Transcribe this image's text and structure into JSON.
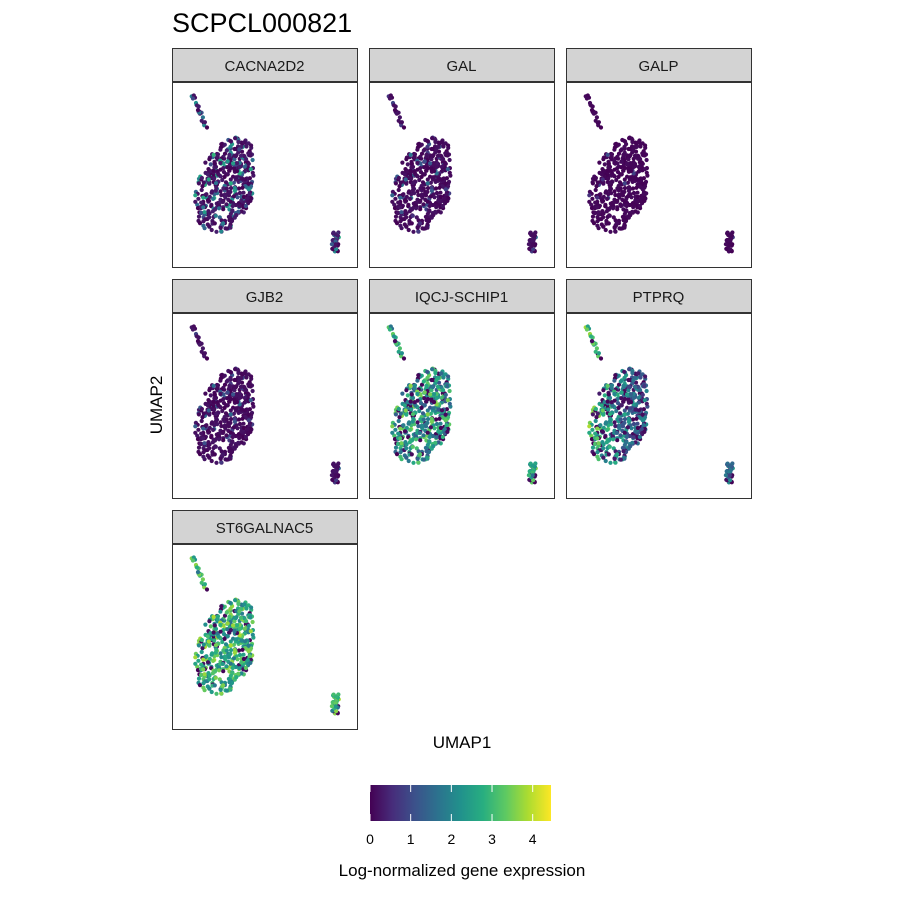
{
  "chart_data": {
    "type": "scatter",
    "title": "SCPCL000821",
    "xlabel": "UMAP1",
    "ylabel": "UMAP2",
    "axis_ticks_shown": false,
    "grid": false,
    "facet_layout": {
      "ncol": 3,
      "nrow": 3
    },
    "panels": [
      {
        "gene": "CACNA2D2",
        "expression_level": "low"
      },
      {
        "gene": "GAL",
        "expression_level": "very low"
      },
      {
        "gene": "GALP",
        "expression_level": "near zero"
      },
      {
        "gene": "GJB2",
        "expression_level": "very low"
      },
      {
        "gene": "IQCJ-SCHIP1",
        "expression_level": "moderate"
      },
      {
        "gene": "PTPRQ",
        "expression_level": "moderate, highest on left edge of main cluster"
      },
      {
        "gene": "ST6GALNAC5",
        "expression_level": "high"
      }
    ],
    "colorbar": {
      "title": "Log-normalized gene expression",
      "ticks": [
        "0",
        "1",
        "2",
        "3",
        "4"
      ],
      "range": [
        0,
        4.45
      ],
      "palette": "viridis",
      "colors": [
        "#440154",
        "#472d7b",
        "#3b528b",
        "#2c728e",
        "#21918c",
        "#28ae80",
        "#5ec962",
        "#addc30",
        "#fde725"
      ],
      "placement": "bottom"
    }
  }
}
